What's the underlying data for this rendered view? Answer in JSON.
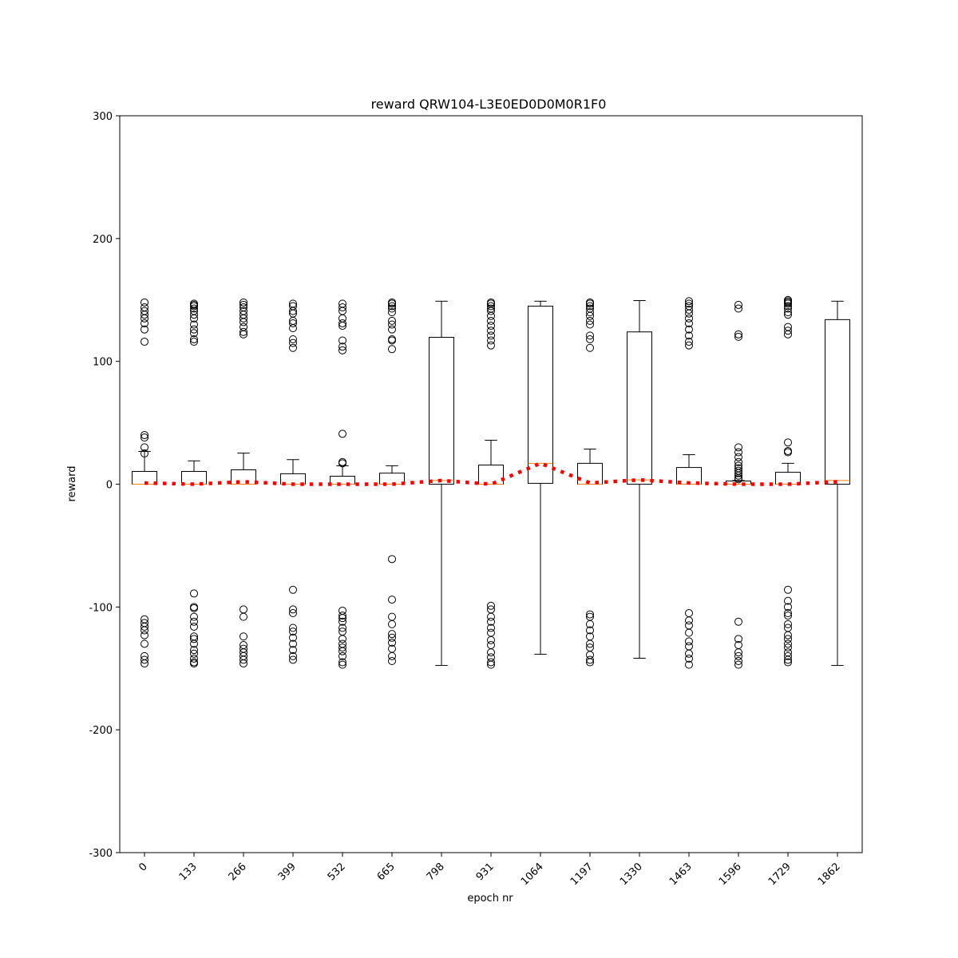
{
  "chart_data": {
    "type": "box",
    "title": "reward QRW104-L3E0ED0D0M0R1F0",
    "x_label": "epoch nr",
    "y_label": "reward",
    "categories": [
      "0",
      "133",
      "266",
      "399",
      "532",
      "665",
      "798",
      "931",
      "1064",
      "1197",
      "1330",
      "1463",
      "1596",
      "1729",
      "1862"
    ],
    "ylim": [
      -300,
      300
    ],
    "yticks": [
      -300,
      -200,
      -100,
      0,
      100,
      200,
      300
    ],
    "box_color": "#000000",
    "median_color": "#ff7f0e",
    "mean_color": "#ff0000",
    "boxes": [
      {
        "q1": 0,
        "median": 0,
        "q3": 10.4,
        "whislo": 0,
        "whishi": 26.7,
        "fliers": [
          148,
          144,
          141,
          138,
          135,
          131,
          126,
          116,
          40,
          38,
          30,
          25,
          -110,
          -113,
          -116,
          -119,
          -123,
          -130,
          -140,
          -143,
          -146
        ]
      },
      {
        "q1": 0,
        "median": 0,
        "q3": 10.4,
        "whislo": 0,
        "whishi": 19,
        "fliers": [
          147,
          146,
          145,
          143,
          141,
          138,
          135,
          130,
          126,
          123,
          118,
          116,
          -89,
          -100,
          -101,
          -108,
          -112,
          -116,
          -124,
          -126,
          -130,
          -135,
          -138,
          -142,
          -145,
          -146
        ]
      },
      {
        "q1": 0,
        "median": 0,
        "q3": 11.7,
        "whislo": 0,
        "whishi": 25.3,
        "fliers": [
          148,
          146,
          144,
          141,
          138,
          135,
          132,
          128,
          124,
          122,
          -102,
          -108,
          -124,
          -131,
          -134,
          -137,
          -140,
          -143,
          -146
        ]
      },
      {
        "q1": 0,
        "median": 0,
        "q3": 8.5,
        "whislo": 0,
        "whishi": 20,
        "fliers": [
          147,
          145,
          141,
          139,
          133,
          131,
          127,
          118,
          115,
          111,
          -86,
          -102,
          -105,
          -117,
          -120,
          -125,
          -130,
          -135,
          -140,
          -143
        ]
      },
      {
        "q1": 0,
        "median": 0,
        "q3": 6.5,
        "whislo": 0,
        "whishi": 15,
        "fliers": [
          147,
          144,
          141,
          135,
          131,
          129,
          117,
          112,
          109,
          41,
          18,
          17,
          -103,
          -107,
          -109,
          -112,
          -117,
          -120,
          -126,
          -130,
          -133,
          -136,
          -140,
          -145,
          -147
        ]
      },
      {
        "q1": 0,
        "median": 0,
        "q3": 9,
        "whislo": 0,
        "whishi": 15,
        "fliers": [
          148,
          147,
          145,
          143,
          140,
          133,
          130,
          126,
          118,
          117,
          110,
          -61,
          -94,
          -108,
          -114,
          -122,
          -125,
          -129,
          -134,
          -140,
          -144
        ]
      },
      {
        "q1": 0,
        "median": 3,
        "q3": 119.6,
        "whislo": -147.6,
        "whishi": 149,
        "fliers": []
      },
      {
        "q1": 0,
        "median": 0,
        "q3": 15.6,
        "whislo": 0,
        "whishi": 35.8,
        "fliers": [
          148,
          147,
          145,
          143,
          141,
          137,
          133,
          129,
          125,
          121,
          117,
          113,
          -99,
          -102,
          -108,
          -112,
          -117,
          -121,
          -127,
          -131,
          -137,
          -141,
          -145,
          -147
        ]
      },
      {
        "q1": 0.7,
        "median": 17,
        "q3": 145,
        "whislo": -138.5,
        "whishi": 149,
        "fliers": []
      },
      {
        "q1": 0,
        "median": 0,
        "q3": 17,
        "whislo": 0,
        "whishi": 28.6,
        "fliers": [
          148,
          147,
          145,
          143,
          140,
          137,
          133,
          130,
          121,
          118,
          111,
          -106,
          -108,
          -114,
          -119,
          -124,
          -130,
          -133,
          -139,
          -143,
          -145
        ]
      },
      {
        "q1": 0,
        "median": 3.5,
        "q3": 124,
        "whislo": -141.7,
        "whishi": 149.5,
        "fliers": []
      },
      {
        "q1": 0,
        "median": 0,
        "q3": 13.6,
        "whislo": 0,
        "whishi": 24,
        "fliers": [
          149,
          147,
          145,
          142,
          139,
          135,
          131,
          126,
          121,
          116,
          113,
          -105,
          -111,
          -115,
          -121,
          -128,
          -132,
          -138,
          -142,
          -147
        ]
      },
      {
        "q1": 0,
        "median": 0,
        "q3": 2.6,
        "whislo": 0,
        "whishi": 3,
        "fliers": [
          146,
          143,
          122,
          120,
          30,
          26,
          22,
          18,
          15,
          13,
          11,
          9,
          7,
          5,
          4,
          -112,
          -126,
          -131,
          -137,
          -140,
          -144,
          -147
        ]
      },
      {
        "q1": 0,
        "median": 0,
        "q3": 9.7,
        "whislo": 0,
        "whishi": 17,
        "fliers": [
          150,
          149,
          148,
          147,
          145,
          143,
          140,
          138,
          128,
          125,
          122,
          34,
          27,
          26,
          -86,
          -95,
          -100,
          -105,
          -107,
          -114,
          -117,
          -123,
          -126,
          -130,
          -133,
          -137,
          -140,
          -143,
          -145
        ]
      },
      {
        "q1": 0,
        "median": 3,
        "q3": 134,
        "whislo": -147.6,
        "whishi": 149,
        "fliers": []
      }
    ],
    "means": [
      1,
      0,
      2,
      0,
      0,
      0,
      3,
      0,
      17,
      1,
      3.5,
      1,
      0,
      0,
      2
    ]
  }
}
